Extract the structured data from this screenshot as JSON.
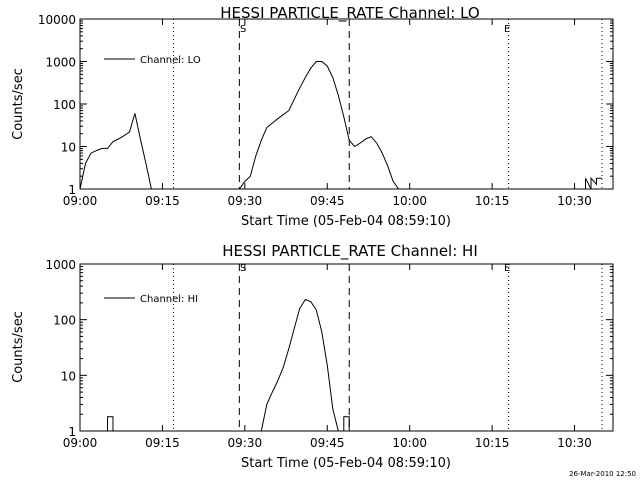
{
  "timestamp": "26-Mar-2010 12:50",
  "chart_data": [
    {
      "type": "line",
      "title": "HESSI PARTICLE_RATE Channel: LO",
      "xlabel": "Start Time (05-Feb-04 08:59:10)",
      "ylabel": "Counts/sec",
      "yscale": "log",
      "ylim": [
        1,
        10000
      ],
      "xlim": [
        "09:00",
        "10:37"
      ],
      "xticks": [
        "09:00",
        "09:15",
        "09:30",
        "09:45",
        "10:00",
        "10:15",
        "10:30"
      ],
      "yticks": [
        "1",
        "10",
        "100",
        "1000",
        "10000"
      ],
      "legend": {
        "label": "Channel: LO",
        "position": "top-left"
      },
      "markers": {
        "start_label": "S",
        "end_label": "E"
      },
      "dashed_lines": [
        "09:29",
        "09:49"
      ],
      "dotted_lines": [
        "09:17",
        "10:18",
        "10:35"
      ],
      "grid": false,
      "series": [
        {
          "segments": [
            {
              "x": [
                "09:00",
                "09:01",
                "09:02",
                "09:03",
                "09:04",
                "09:05",
                "09:06",
                "09:07",
                "09:08",
                "09:09",
                "09:10",
                "09:11",
                "09:12",
                "09:13"
              ],
              "y": [
                1,
                4,
                7,
                8,
                9,
                9,
                13,
                15,
                18,
                22,
                60,
                15,
                4,
                1
              ]
            },
            {
              "x": [
                "09:29",
                "09:30",
                "09:31",
                "09:32",
                "09:33",
                "09:34",
                "09:36",
                "09:38",
                "09:39",
                "09:40",
                "09:41",
                "09:42",
                "09:43",
                "09:44",
                "09:45",
                "09:46",
                "09:47",
                "09:48",
                "09:49",
                "09:50",
                "09:51",
                "09:52",
                "09:53",
                "09:54",
                "09:55",
                "09:56",
                "09:57",
                "09:58",
                "09:59"
              ],
              "y": [
                1,
                1.5,
                2,
                6,
                14,
                28,
                45,
                70,
                130,
                240,
                420,
                700,
                1000,
                1000,
                780,
                420,
                160,
                50,
                14,
                10,
                12,
                15,
                17,
                12,
                7,
                3.5,
                1.5,
                1,
                1
              ]
            },
            {
              "x": [
                "10:32",
                "10:32",
                "10:33",
                "10:33",
                "10:34",
                "10:34",
                "10:35"
              ],
              "y": [
                1,
                1.8,
                1,
                1.8,
                1.3,
                1.8,
                1.8
              ]
            }
          ]
        }
      ]
    },
    {
      "type": "line",
      "title": "HESSI PARTICLE_RATE Channel: HI",
      "xlabel": "Start Time (05-Feb-04 08:59:10)",
      "ylabel": "Counts/sec",
      "yscale": "log",
      "ylim": [
        1,
        1000
      ],
      "xlim": [
        "09:00",
        "10:37"
      ],
      "xticks": [
        "09:00",
        "09:15",
        "09:30",
        "09:45",
        "10:00",
        "10:15",
        "10:30"
      ],
      "yticks": [
        "1",
        "10",
        "100",
        "1000"
      ],
      "legend": {
        "label": "Channel: HI",
        "position": "top-left"
      },
      "markers": {
        "start_label": "S",
        "end_label": "E"
      },
      "dashed_lines": [
        "09:29",
        "09:49"
      ],
      "dotted_lines": [
        "09:17",
        "10:18",
        "10:35"
      ],
      "grid": false,
      "series": [
        {
          "segments": [
            {
              "x": [
                "09:05",
                "09:05",
                "09:06",
                "09:06"
              ],
              "y": [
                1,
                1.8,
                1.8,
                1
              ]
            },
            {
              "x": [
                "09:33",
                "09:34",
                "09:35",
                "09:36",
                "09:37",
                "09:38",
                "09:39",
                "09:40",
                "09:41",
                "09:42",
                "09:43",
                "09:44",
                "09:45",
                "09:46",
                "09:47"
              ],
              "y": [
                1,
                3,
                5,
                8,
                14,
                30,
                70,
                160,
                230,
                210,
                150,
                60,
                15,
                2.5,
                1
              ]
            },
            {
              "x": [
                "09:48",
                "09:48",
                "09:49",
                "09:49"
              ],
              "y": [
                1,
                1.8,
                1.8,
                1
              ]
            }
          ]
        }
      ]
    }
  ]
}
